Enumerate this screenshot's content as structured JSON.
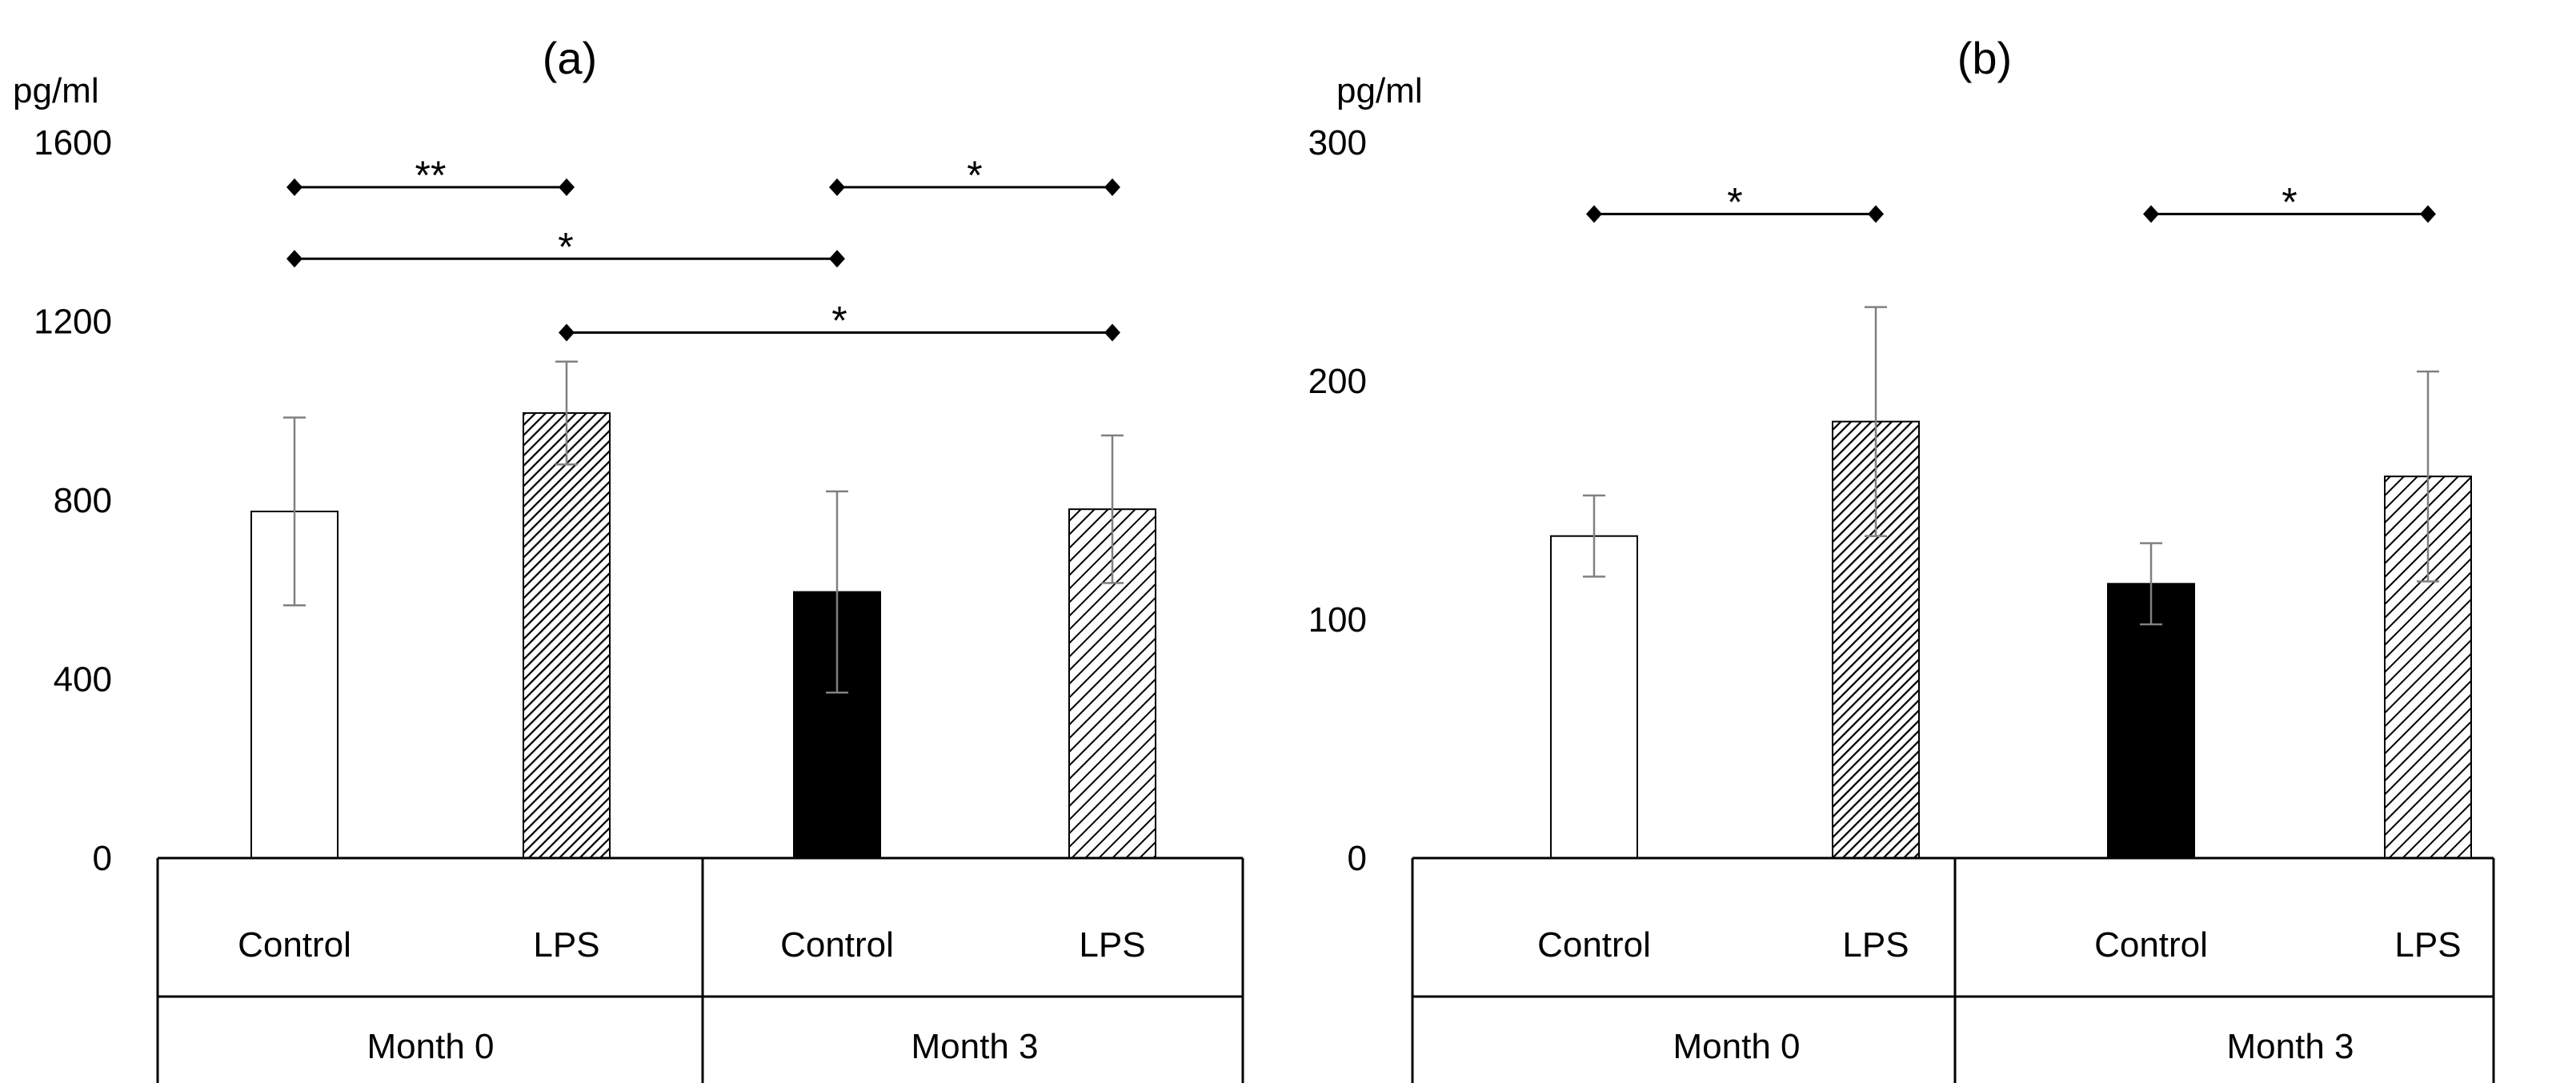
{
  "colors": {
    "background": "#ffffff",
    "axis": "#000000",
    "bar_stroke": "#000000",
    "error_bar": "#808080"
  },
  "chart_data": [
    {
      "type": "bar",
      "panel_title": "(a)",
      "ylabel": "pg/ml",
      "ylim": [
        0,
        1600
      ],
      "yticks": [
        0,
        400,
        800,
        1200,
        1600
      ],
      "categories": [
        "Control",
        "LPS",
        "Control",
        "LPS"
      ],
      "groups": [
        "Month 0",
        "Month 3"
      ],
      "values": [
        775,
        995,
        595,
        780
      ],
      "errors": [
        210,
        115,
        225,
        165
      ],
      "fills": [
        "white",
        "hatch-dense",
        "black",
        "hatch-sparse"
      ],
      "significance": [
        {
          "from": 0,
          "to": 1,
          "y": 1500,
          "label": "**"
        },
        {
          "from": 2,
          "to": 3,
          "y": 1500,
          "label": "*"
        },
        {
          "from": 0,
          "to": 2,
          "y": 1340,
          "label": "*"
        },
        {
          "from": 1,
          "to": 3,
          "y": 1175,
          "label": "*"
        }
      ]
    },
    {
      "type": "bar",
      "panel_title": "(b)",
      "ylabel": "pg/ml",
      "ylim": [
        0,
        300
      ],
      "yticks": [
        0,
        100,
        200,
        300
      ],
      "categories": [
        "Control",
        "LPS",
        "Control",
        "LPS"
      ],
      "groups": [
        "Month 0",
        "Month 3"
      ],
      "values": [
        135,
        183,
        115,
        160
      ],
      "errors": [
        17,
        48,
        17,
        44
      ],
      "fills": [
        "white",
        "hatch-dense",
        "black",
        "hatch-sparse"
      ],
      "significance": [
        {
          "from": 0,
          "to": 1,
          "y": 270,
          "label": "*"
        },
        {
          "from": 2,
          "to": 3,
          "y": 270,
          "label": "*"
        }
      ]
    }
  ]
}
